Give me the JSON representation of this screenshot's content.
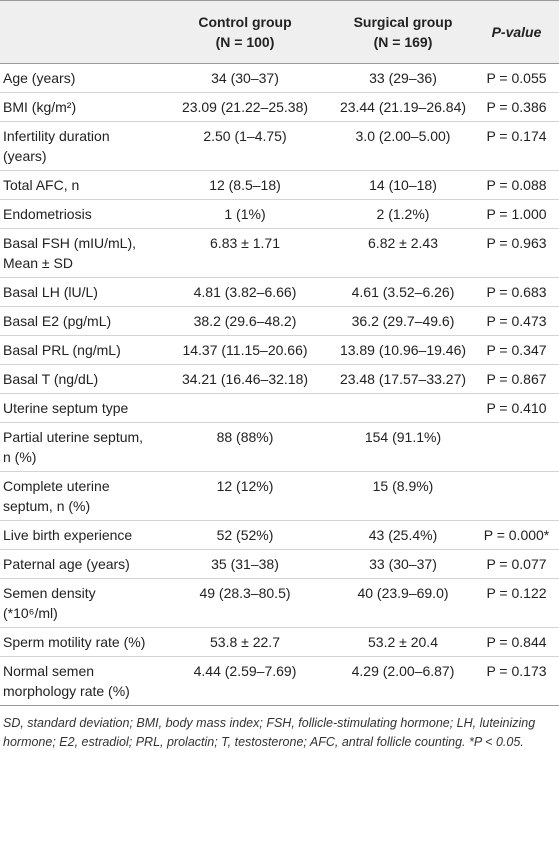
{
  "table": {
    "header": [
      {
        "lines": [
          ""
        ]
      },
      {
        "lines": [
          "Control group",
          "(N = 100)"
        ]
      },
      {
        "lines": [
          "Surgical group",
          "(N = 169)"
        ]
      },
      {
        "lines": [
          "P-value"
        ]
      }
    ],
    "rows": [
      [
        "Age (years)",
        "34 (30–37)",
        "33 (29–36)",
        "P = 0.055"
      ],
      [
        "BMI (kg/m²)",
        "23.09 (21.22–25.38)",
        "23.44 (21.19–26.84)",
        "P = 0.386"
      ],
      [
        "Infertility duration (years)",
        "2.50 (1–4.75)",
        "3.0 (2.00–5.00)",
        "P = 0.174"
      ],
      [
        "Total AFC, n",
        "12 (8.5–18)",
        "14 (10–18)",
        "P = 0.088"
      ],
      [
        "Endometriosis",
        "1 (1%)",
        "2 (1.2%)",
        "P = 1.000"
      ],
      [
        "Basal FSH (mIU/mL), Mean ± SD",
        "6.83 ± 1.71",
        "6.82 ± 2.43",
        "P = 0.963"
      ],
      [
        "Basal LH (lU/L)",
        "4.81 (3.82–6.66)",
        "4.61 (3.52–6.26)",
        "P = 0.683"
      ],
      [
        "Basal E2 (pg/mL)",
        "38.2 (29.6–48.2)",
        "36.2 (29.7–49.6)",
        "P = 0.473"
      ],
      [
        "Basal PRL (ng/mL)",
        "14.37 (11.15–20.66)",
        "13.89 (10.96–19.46)",
        "P = 0.347"
      ],
      [
        "Basal T (ng/dL)",
        "34.21 (16.46–32.18)",
        "23.48 (17.57–33.27)",
        "P = 0.867"
      ],
      [
        "Uterine septum type",
        "",
        "",
        "P = 0.410"
      ],
      [
        "Partial uterine septum, n (%)",
        "88 (88%)",
        "154 (91.1%)",
        ""
      ],
      [
        "Complete uterine septum, n (%)",
        "12 (12%)",
        "15 (8.9%)",
        ""
      ],
      [
        "Live birth experience",
        "52 (52%)",
        "43 (25.4%)",
        "P = 0.000*"
      ],
      [
        "Paternal age (years)",
        "35 (31–38)",
        "33 (30–37)",
        "P = 0.077"
      ],
      [
        "Semen density (*10⁶/ml)",
        "49 (28.3–80.5)",
        "40 (23.9–69.0)",
        "P = 0.122"
      ],
      [
        "Sperm motility rate (%)",
        "53.8 ± 22.7",
        "53.2 ± 20.4",
        "P = 0.844"
      ],
      [
        "Normal semen morphology rate (%)",
        "4.44 (2.59–7.69)",
        "4.29 (2.00–6.87)",
        "P = 0.173"
      ]
    ],
    "footnote": "SD, standard deviation; BMI, body mass index; FSH, follicle-stimulating hormone; LH, luteinizing hormone; E2, estradiol; PRL, prolactin; T, testosterone; AFC, antral follicle counting. *P < 0.05."
  }
}
